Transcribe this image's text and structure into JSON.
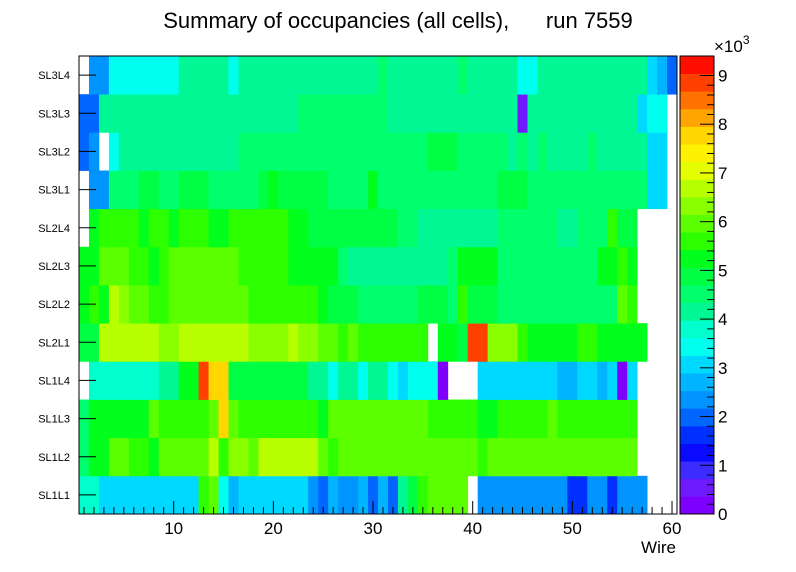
{
  "chart_data": {
    "type": "heatmap",
    "title": "Summary of occupancies (all cells),      run 7559",
    "xlabel": "Wire",
    "ylabel": "",
    "x_range": [
      0.5,
      60.5
    ],
    "x_ticks": [
      10,
      20,
      30,
      40,
      50,
      60
    ],
    "y_categories": [
      "SL1L1",
      "SL1L2",
      "SL1L3",
      "SL1L4",
      "SL2L1",
      "SL2L2",
      "SL2L3",
      "SL2L4",
      "SL3L1",
      "SL3L2",
      "SL3L3",
      "SL3L4"
    ],
    "z_range": [
      0,
      9400
    ],
    "z_ticks": [
      0,
      1,
      2,
      3,
      4,
      5,
      6,
      7,
      8,
      9
    ],
    "z_exponent_label": "×10",
    "z_exponent": "3",
    "colormap": [
      "#7e00ff",
      "#6e1aff",
      "#3c2cff",
      "#0a0aff",
      "#0030ff",
      "#0066ff",
      "#0094ff",
      "#00b4ff",
      "#00d9ff",
      "#00ffee",
      "#00ffcc",
      "#00f794",
      "#00ff6c",
      "#00ff44",
      "#00ff1c",
      "#2eff00",
      "#5cff00",
      "#8aff00",
      "#b8ff00",
      "#e6ff00",
      "#fff200",
      "#ffd600",
      "#ffa400",
      "#ff7200",
      "#ff4000",
      "#ff0e00"
    ],
    "rows": {
      "SL1L1": [
        3.7,
        3.7,
        3.2,
        3.2,
        3.2,
        3.2,
        3.2,
        3.2,
        3.2,
        3.2,
        3.2,
        3.2,
        5.6,
        6.1,
        3.3,
        2.6,
        3.2,
        3.2,
        3.2,
        2.9,
        2.9,
        2.9,
        2.9,
        2.3,
        2.0,
        2.6,
        2.2,
        2.2,
        2.6,
        2.0,
        2.8,
        2.0,
        4.0,
        4.9,
        5.5,
        5.9,
        5.9,
        5.9,
        5.9,
        null,
        2.3,
        2.3,
        2.3,
        2.3,
        2.3,
        2.3,
        2.3,
        2.3,
        2.3,
        1.8,
        1.8,
        2.2,
        2.2,
        1.8,
        2.2,
        2.4,
        2.4,
        null,
        null,
        null
      ],
      "SL1L2": [
        4.4,
        5.2,
        5.4,
        5.9,
        5.9,
        5.7,
        5.7,
        5.4,
        5.8,
        5.8,
        5.8,
        5.8,
        5.8,
        6.8,
        5.7,
        6.2,
        6.2,
        6.0,
        6.8,
        6.8,
        6.8,
        6.8,
        6.8,
        6.8,
        5.9,
        5.7,
        5.8,
        5.8,
        5.8,
        6.0,
        5.8,
        5.9,
        5.9,
        5.8,
        5.9,
        5.8,
        5.8,
        5.8,
        5.9,
        5.8,
        5.7,
        5.8,
        5.8,
        5.9,
        5.8,
        5.8,
        5.9,
        5.8,
        5.8,
        5.8,
        5.8,
        5.8,
        5.8,
        5.8,
        5.8,
        5.8,
        null,
        null,
        null,
        null
      ],
      "SL1L3": [
        4.4,
        5.2,
        5.4,
        5.2,
        5.4,
        5.2,
        5.4,
        5.9,
        5.6,
        5.6,
        5.6,
        5.6,
        5.6,
        5.8,
        7.6,
        5.9,
        5.6,
        5.6,
        5.6,
        5.6,
        5.6,
        5.6,
        5.6,
        5.5,
        5.3,
        5.8,
        5.8,
        5.9,
        5.9,
        5.9,
        5.9,
        5.9,
        5.9,
        5.9,
        5.9,
        5.5,
        5.5,
        5.5,
        5.5,
        5.5,
        5.3,
        5.3,
        5.7,
        5.7,
        5.7,
        5.5,
        5.5,
        5.8,
        5.6,
        5.6,
        5.6,
        5.6,
        5.6,
        5.6,
        5.6,
        5.6,
        null,
        null,
        null,
        null
      ],
      "SL1L4": [
        null,
        3.8,
        3.8,
        3.8,
        3.8,
        3.8,
        3.8,
        3.8,
        4.3,
        4.3,
        5.2,
        5.2,
        9.0,
        7.6,
        7.6,
        4.8,
        4.8,
        4.8,
        4.8,
        4.8,
        4.8,
        4.8,
        4.8,
        4.1,
        4.1,
        3.4,
        4.1,
        4.1,
        3.4,
        4.1,
        4.1,
        3.5,
        3.0,
        3.5,
        3.5,
        3.5,
        0.3,
        null,
        null,
        null,
        3.1,
        3.1,
        3.1,
        3.1,
        3.1,
        3.1,
        3.1,
        3.1,
        2.6,
        2.6,
        3.1,
        3.1,
        2.6,
        3.1,
        0.3,
        3.1,
        null,
        null,
        null,
        null
      ],
      "SL2L1": [
        4.8,
        4.8,
        6.8,
        6.8,
        6.8,
        6.8,
        6.6,
        6.6,
        6.2,
        6.2,
        6.8,
        6.8,
        6.8,
        6.8,
        6.8,
        6.8,
        6.6,
        6.5,
        6.5,
        6.5,
        6.5,
        6.6,
        6.3,
        6.3,
        5.8,
        5.8,
        5.6,
        5.8,
        5.5,
        5.5,
        5.5,
        5.5,
        5.5,
        5.7,
        5.5,
        null,
        5.3,
        5.2,
        5.0,
        9.0,
        8.8,
        6.2,
        6.2,
        6.2,
        5.7,
        5.4,
        5.4,
        5.4,
        5.4,
        5.4,
        5.5,
        5.5,
        5.1,
        5.3,
        5.3,
        5.3,
        5.3,
        null,
        null,
        null
      ],
      "SL2L2": [
        5.2,
        5.6,
        5.3,
        6.8,
        6.5,
        6.0,
        6.0,
        5.6,
        5.5,
        6.0,
        6.0,
        6.0,
        6.0,
        6.0,
        6.0,
        6.0,
        6.0,
        5.5,
        5.5,
        5.5,
        5.5,
        5.6,
        5.6,
        5.6,
        5.3,
        5.0,
        5.0,
        5.0,
        4.4,
        4.4,
        4.4,
        4.4,
        4.4,
        4.4,
        4.9,
        4.9,
        4.9,
        4.6,
        5.6,
        4.9,
        4.9,
        4.9,
        4.6,
        4.6,
        4.6,
        4.6,
        4.6,
        4.6,
        4.6,
        4.6,
        4.6,
        4.6,
        4.6,
        4.6,
        5.8,
        5.6,
        null,
        null,
        null,
        null
      ],
      "SL2L3": [
        5.4,
        5.2,
        6.0,
        6.0,
        6.0,
        5.5,
        5.5,
        5.2,
        5.7,
        6.0,
        6.0,
        6.0,
        6.0,
        6.0,
        6.0,
        6.0,
        5.7,
        5.7,
        5.7,
        5.6,
        5.6,
        5.4,
        5.4,
        5.4,
        5.1,
        5.1,
        4.6,
        4.3,
        4.3,
        4.3,
        4.3,
        4.3,
        4.2,
        4.2,
        4.2,
        4.2,
        4.2,
        4.5,
        5.3,
        5.3,
        5.3,
        5.3,
        4.6,
        4.6,
        4.6,
        4.6,
        4.6,
        4.6,
        4.6,
        4.6,
        4.6,
        4.6,
        5.4,
        5.4,
        5.5,
        5.4,
        null,
        null,
        null,
        null
      ],
      "SL2L4": [
        null,
        5.2,
        5.7,
        5.7,
        5.7,
        5.7,
        5.2,
        5.7,
        5.7,
        5.2,
        5.7,
        5.7,
        5.7,
        5.3,
        5.3,
        5.7,
        5.7,
        5.7,
        5.7,
        5.7,
        5.7,
        5.4,
        5.4,
        5.0,
        5.0,
        4.8,
        4.8,
        4.7,
        4.7,
        4.7,
        4.8,
        4.8,
        4.6,
        4.6,
        4.2,
        4.2,
        4.2,
        4.2,
        4.2,
        4.2,
        4.2,
        4.2,
        4.4,
        4.4,
        4.4,
        4.4,
        4.4,
        4.4,
        4.1,
        4.1,
        4.4,
        4.4,
        4.4,
        5.6,
        4.8,
        4.8,
        null,
        null,
        null,
        null
      ],
      "SL3L1": [
        null,
        2.4,
        2.4,
        4.5,
        4.5,
        4.5,
        4.9,
        4.9,
        4.5,
        4.5,
        4.9,
        4.9,
        4.9,
        4.5,
        4.5,
        4.5,
        4.5,
        4.5,
        4.9,
        5.3,
        4.9,
        4.9,
        4.9,
        4.9,
        4.9,
        4.5,
        4.5,
        4.5,
        4.5,
        5.3,
        4.5,
        4.5,
        4.5,
        4.5,
        4.5,
        4.5,
        4.5,
        4.5,
        4.5,
        4.5,
        4.5,
        4.5,
        4.9,
        4.9,
        4.9,
        4.5,
        4.5,
        4.5,
        4.5,
        4.5,
        4.5,
        4.5,
        4.5,
        4.5,
        4.5,
        4.5,
        4.5,
        3.2,
        3.2,
        null
      ],
      "SL3L2": [
        1.9,
        2.4,
        null,
        3.4,
        4.3,
        4.3,
        4.3,
        4.3,
        4.3,
        4.3,
        4.3,
        4.3,
        4.3,
        4.3,
        4.3,
        4.3,
        4.6,
        4.6,
        4.6,
        4.6,
        4.6,
        4.6,
        4.5,
        4.5,
        4.5,
        4.5,
        4.5,
        4.5,
        4.5,
        4.5,
        4.5,
        4.5,
        4.5,
        4.5,
        4.5,
        4.7,
        4.7,
        4.7,
        4.5,
        4.5,
        4.5,
        4.5,
        4.5,
        4.2,
        4.5,
        4.2,
        4.5,
        4.2,
        4.2,
        4.2,
        4.2,
        4.5,
        4.2,
        4.2,
        4.2,
        4.2,
        4.3,
        3.2,
        3.2,
        null
      ],
      "SL3L3": [
        2.1,
        2.1,
        4.2,
        4.2,
        4.2,
        4.2,
        4.2,
        4.2,
        4.2,
        4.2,
        4.2,
        4.2,
        4.2,
        4.2,
        4.2,
        4.2,
        4.2,
        4.2,
        4.3,
        4.3,
        4.3,
        4.1,
        4.5,
        4.5,
        4.5,
        4.5,
        4.5,
        4.5,
        4.5,
        4.5,
        4.5,
        4.3,
        4.3,
        4.3,
        4.3,
        4.3,
        4.3,
        4.3,
        4.3,
        4.3,
        4.3,
        4.3,
        4.3,
        4.3,
        0.5,
        4.3,
        4.3,
        4.3,
        4.3,
        4.3,
        4.3,
        4.3,
        4.3,
        4.3,
        4.3,
        4.3,
        3.2,
        3.5,
        3.5,
        null
      ],
      "SL3L4": [
        null,
        2.3,
        2.3,
        3.5,
        3.5,
        3.5,
        3.5,
        3.5,
        3.5,
        3.5,
        4.1,
        4.1,
        4.1,
        4.1,
        4.1,
        3.6,
        4.1,
        4.1,
        4.1,
        4.1,
        4.1,
        4.1,
        4.1,
        4.1,
        4.1,
        4.1,
        4.1,
        4.1,
        4.1,
        4.1,
        4.4,
        4.1,
        4.1,
        4.1,
        4.1,
        4.1,
        4.1,
        4.1,
        4.4,
        4.1,
        4.1,
        4.1,
        4.1,
        4.1,
        3.4,
        3.4,
        4.1,
        4.1,
        4.1,
        4.1,
        4.1,
        4.1,
        4.1,
        4.1,
        4.1,
        4.1,
        4.1,
        3.1,
        2.6,
        2.0
      ]
    }
  }
}
